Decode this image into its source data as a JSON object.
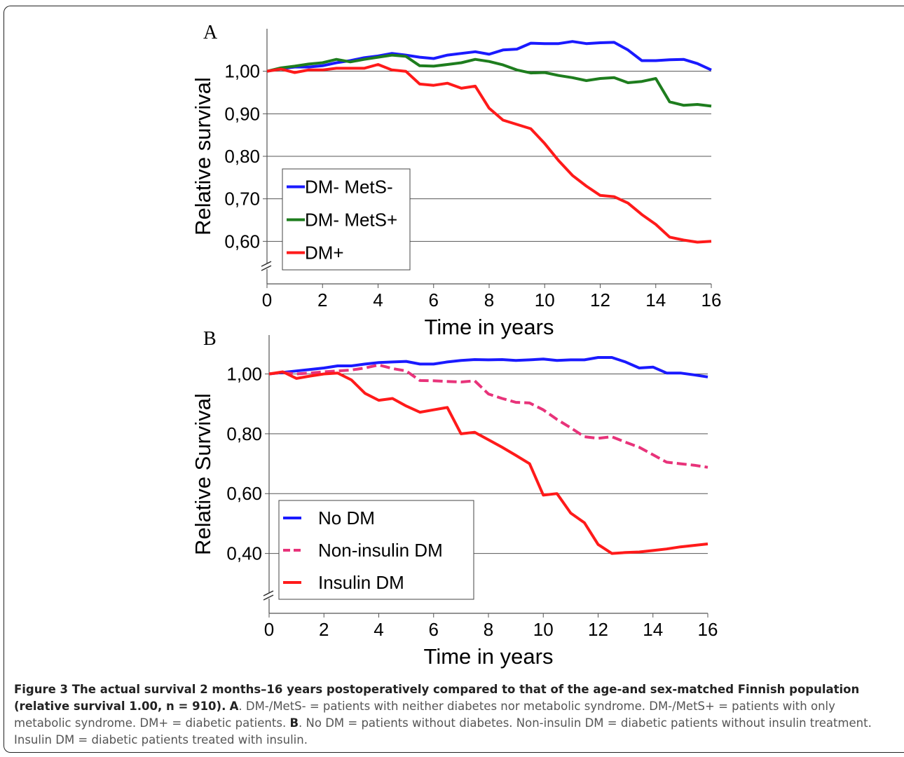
{
  "chart_data": [
    {
      "type": "line",
      "panel": "A",
      "y_label": "Relative survival",
      "x_label": "Time in years",
      "x": [
        0,
        0.5,
        1,
        1.5,
        2,
        2.5,
        3,
        3.5,
        4,
        4.5,
        5,
        5.5,
        6,
        6.5,
        7,
        7.5,
        8,
        8.5,
        9,
        9.5,
        10,
        10.5,
        11,
        11.5,
        12,
        12.5,
        13,
        13.5,
        14,
        14.5,
        15,
        15.5,
        16
      ],
      "series": [
        {
          "name": "DM- MetS-",
          "color": "#1a1aff",
          "values": [
            1.0,
            1.006,
            1.01,
            1.01,
            1.013,
            1.02,
            1.025,
            1.032,
            1.036,
            1.042,
            1.038,
            1.033,
            1.03,
            1.038,
            1.042,
            1.046,
            1.04,
            1.05,
            1.052,
            1.066,
            1.065,
            1.065,
            1.07,
            1.065,
            1.067,
            1.068,
            1.05,
            1.025,
            1.025,
            1.027,
            1.028,
            1.018,
            1.003
          ]
        },
        {
          "name": "DM- MetS+",
          "color": "#1e7d1e",
          "values": [
            1.0,
            1.008,
            1.012,
            1.017,
            1.02,
            1.028,
            1.022,
            1.028,
            1.033,
            1.038,
            1.035,
            1.013,
            1.012,
            1.016,
            1.02,
            1.028,
            1.023,
            1.015,
            1.003,
            0.996,
            0.997,
            0.99,
            0.985,
            0.978,
            0.983,
            0.985,
            0.973,
            0.976,
            0.983,
            0.928,
            0.92,
            0.922,
            0.918
          ]
        },
        {
          "name": "DM+",
          "color": "#ff1a1a",
          "values": [
            1.0,
            1.005,
            0.997,
            1.003,
            1.003,
            1.007,
            1.007,
            1.007,
            1.016,
            1.003,
            1.0,
            0.97,
            0.967,
            0.972,
            0.96,
            0.965,
            0.913,
            0.885,
            0.875,
            0.865,
            0.83,
            0.79,
            0.755,
            0.73,
            0.708,
            0.705,
            0.69,
            0.663,
            0.64,
            0.61,
            0.603,
            0.598,
            0.6
          ]
        }
      ],
      "xlim": [
        0,
        16
      ],
      "xticks": [
        0,
        2,
        4,
        6,
        8,
        10,
        12,
        14,
        16
      ],
      "ylim": [
        0.5,
        1.1
      ],
      "yticks": [
        {
          "value": 1.0,
          "label": "1,00"
        },
        {
          "value": 0.9,
          "label": "0,90"
        },
        {
          "value": 0.8,
          "label": "0,80"
        },
        {
          "value": 0.7,
          "label": "0,70"
        },
        {
          "value": 0.6,
          "label": "0,60"
        }
      ],
      "grid": true,
      "legend": "lower left"
    },
    {
      "type": "line",
      "panel": "B",
      "y_label": "Relative Survival",
      "x_label": "Time in years",
      "x": [
        0,
        0.5,
        1,
        1.5,
        2,
        2.5,
        3,
        3.5,
        4,
        4.5,
        5,
        5.5,
        6,
        6.5,
        7,
        7.5,
        8,
        8.5,
        9,
        9.5,
        10,
        10.5,
        11,
        11.5,
        12,
        12.5,
        13,
        13.5,
        14,
        14.5,
        15,
        15.5,
        16
      ],
      "series": [
        {
          "name": "No DM",
          "color": "#1a1aff",
          "values": [
            1.0,
            1.005,
            1.01,
            1.015,
            1.02,
            1.027,
            1.027,
            1.033,
            1.038,
            1.04,
            1.042,
            1.033,
            1.033,
            1.04,
            1.045,
            1.048,
            1.047,
            1.048,
            1.045,
            1.047,
            1.05,
            1.045,
            1.047,
            1.047,
            1.055,
            1.055,
            1.04,
            1.02,
            1.023,
            1.003,
            1.003,
            0.997,
            0.99
          ]
        },
        {
          "name": "Non-insulin DM",
          "color": "#e8337a",
          "dashed": true,
          "values": [
            1.0,
            1.005,
            1.0,
            1.003,
            1.007,
            1.01,
            1.013,
            1.02,
            1.03,
            1.018,
            1.01,
            0.978,
            0.977,
            0.975,
            0.973,
            0.977,
            0.933,
            0.918,
            0.905,
            0.903,
            0.88,
            0.848,
            0.82,
            0.79,
            0.785,
            0.79,
            0.772,
            0.755,
            0.73,
            0.705,
            0.7,
            0.695,
            0.688
          ]
        },
        {
          "name": "Insulin DM",
          "color": "#ff1a1a",
          "values": [
            1.0,
            1.007,
            0.985,
            0.993,
            1.0,
            1.003,
            0.98,
            0.935,
            0.912,
            0.918,
            0.893,
            0.872,
            0.88,
            0.888,
            0.8,
            0.805,
            0.78,
            0.755,
            0.728,
            0.7,
            0.595,
            0.6,
            0.535,
            0.503,
            0.43,
            0.4,
            0.403,
            0.405,
            0.41,
            0.415,
            0.422,
            0.427,
            0.432
          ]
        }
      ],
      "xlim": [
        0,
        16
      ],
      "xticks": [
        0,
        2,
        4,
        6,
        8,
        10,
        12,
        14,
        16
      ],
      "ylim": [
        0.2,
        1.13
      ],
      "yticks": [
        {
          "value": 1.0,
          "label": "1,00"
        },
        {
          "value": 0.8,
          "label": "0,80"
        },
        {
          "value": 0.6,
          "label": "0,60"
        },
        {
          "value": 0.4,
          "label": "0,40"
        }
      ],
      "grid": true,
      "legend": "lower left"
    }
  ],
  "caption": {
    "title": "Figure 3 The actual survival 2 months–16 years postoperatively compared to that of the age-and sex-matched Finnish population (relative survival 1.00, n = 910).",
    "label_a": "A",
    "text_a": ". DM-/MetS- = patients with neither diabetes nor metabolic syndrome. DM-/MetS+ = patients with only metabolic syndrome. DM+ = diabetic patients.",
    "label_b": "B",
    "text_b": ". No DM = patients without diabetes. Non-insulin DM = diabetic patients without insulin treatment. Insulin DM = diabetic patients treated with insulin."
  }
}
